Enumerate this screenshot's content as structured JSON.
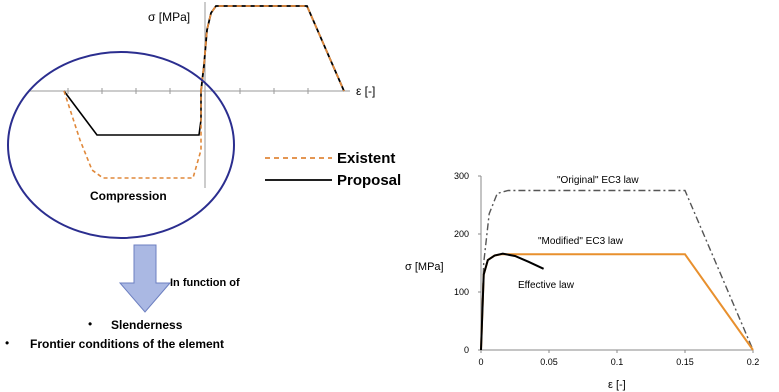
{
  "left_diagram": {
    "y_axis_label": "σ [MPa]",
    "x_axis_label": "ε [-]",
    "legend": [
      {
        "label": "Existent",
        "color": "#e0883a",
        "style": "dashed"
      },
      {
        "label": "Proposal",
        "color": "#000000",
        "style": "solid"
      }
    ],
    "circle_label": "Compression",
    "circle_color": "#2b2e8f",
    "arrow_label": "In function of",
    "arrow_color": "#aab8e3",
    "bullets": [
      "Slenderness",
      "Frontier conditions of the element"
    ]
  },
  "chart_data": {
    "type": "line",
    "xlabel": "ε [-]",
    "ylabel": "σ [MPa]",
    "xlim": [
      0,
      0.2
    ],
    "ylim": [
      0,
      300
    ],
    "x_ticks": [
      "0",
      "0.05",
      "0.1",
      "0.15",
      "0.2"
    ],
    "y_ticks": [
      "0",
      "100",
      "200",
      "300"
    ],
    "x_tick_values": [
      0,
      0.05,
      0.1,
      0.15,
      0.2
    ],
    "y_tick_values": [
      0,
      100,
      200,
      300
    ],
    "grid": false,
    "series": [
      {
        "name": "\"Original\" EC3 law",
        "color": "#555555",
        "style": "dashdot",
        "points": [
          [
            0,
            0
          ],
          [
            0.002,
            150
          ],
          [
            0.006,
            235
          ],
          [
            0.012,
            270
          ],
          [
            0.02,
            275
          ],
          [
            0.15,
            275
          ],
          [
            0.2,
            0
          ]
        ]
      },
      {
        "name": "\"Modified\" EC3 law",
        "color": "#e8902e",
        "style": "solid",
        "points": [
          [
            0,
            0
          ],
          [
            0.002,
            130
          ],
          [
            0.005,
            155
          ],
          [
            0.01,
            163
          ],
          [
            0.015,
            165
          ],
          [
            0.15,
            165
          ],
          [
            0.2,
            0
          ]
        ]
      },
      {
        "name": "Effective law",
        "color": "#000000",
        "style": "solid",
        "points": [
          [
            0,
            0
          ],
          [
            0.002,
            130
          ],
          [
            0.005,
            155
          ],
          [
            0.01,
            163
          ],
          [
            0.016,
            166
          ],
          [
            0.025,
            162
          ],
          [
            0.035,
            152
          ],
          [
            0.046,
            140
          ]
        ]
      }
    ],
    "annotations": [
      "\"Original\" EC3 law",
      "\"Modified\" EC3 law",
      "Effective law"
    ]
  }
}
